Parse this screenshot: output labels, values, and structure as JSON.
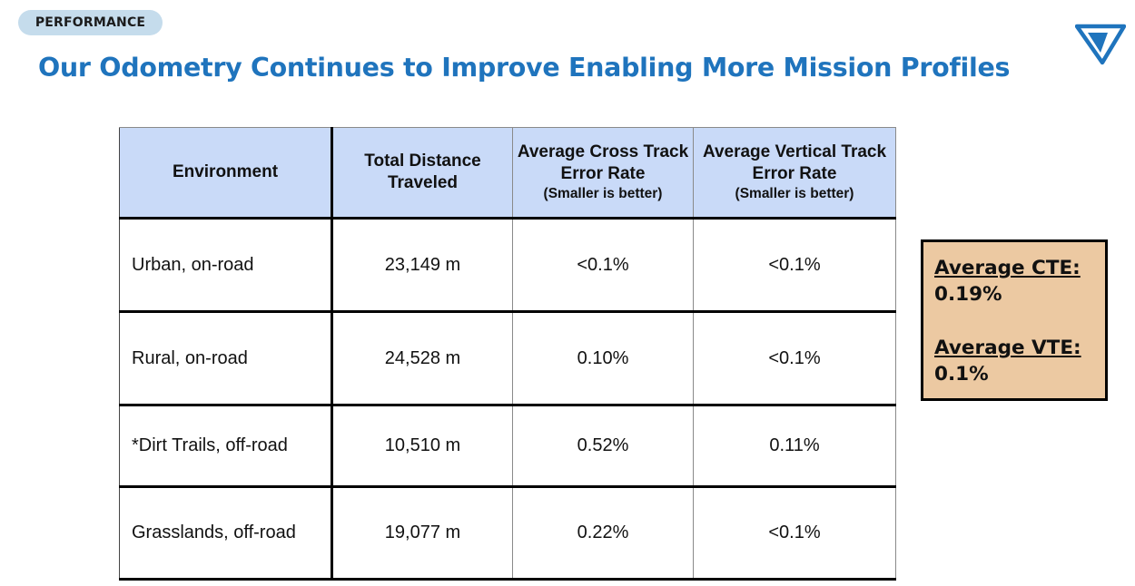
{
  "badge": "PERFORMANCE",
  "title": "Our Odometry Continues to Improve Enabling More Mission Profiles",
  "colors": {
    "title": "#1f74bd",
    "badge_bg": "#c5dcec",
    "header_bg": "#c9daf8",
    "summary_bg": "#ecc9a2"
  },
  "logo_icon": "brand-logo-icon",
  "table": {
    "headers": [
      {
        "main": "Environment",
        "sub": ""
      },
      {
        "main": "Total Distance Traveled",
        "sub": ""
      },
      {
        "main": "Average Cross Track Error Rate",
        "sub": "(Smaller is better)"
      },
      {
        "main": "Average Vertical Track Error Rate",
        "sub": "(Smaller is better)"
      }
    ],
    "rows": [
      [
        "Urban, on-road",
        "23,149 m",
        "<0.1%",
        "<0.1%"
      ],
      [
        "Rural, on-road",
        "24,528 m",
        "0.10%",
        "<0.1%"
      ],
      [
        "*Dirt Trails, off-road",
        "10,510 m",
        "0.52%",
        "0.11%"
      ],
      [
        "Grasslands, off-road",
        "19,077 m",
        "0.22%",
        "<0.1%"
      ]
    ]
  },
  "summary": {
    "cte_label": "Average CTE:",
    "cte_value": "0.19%",
    "vte_label": "Average VTE:",
    "vte_value": "0.1%"
  }
}
